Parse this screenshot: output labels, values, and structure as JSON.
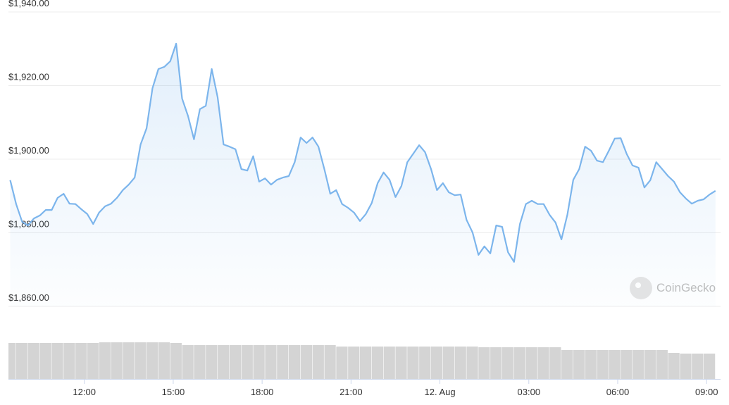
{
  "chart_data": [
    {
      "type": "line",
      "color": "#7cb5ec",
      "watermark": "CoinGecko",
      "x": [
        9.5,
        9.7,
        9.9,
        10.1,
        10.3,
        10.5,
        10.7,
        10.9,
        11.1,
        11.3,
        11.5,
        11.7,
        11.9,
        12.1,
        12.3,
        12.5,
        12.7,
        12.9,
        13.1,
        13.3,
        13.5,
        13.7,
        13.9,
        14.1,
        14.3,
        14.5,
        14.7,
        14.9,
        15.1,
        15.3,
        15.5,
        15.7,
        15.9,
        16.1,
        16.3,
        16.5,
        16.7,
        16.9,
        17.1,
        17.3,
        17.5,
        17.7,
        17.9,
        18.1,
        18.3,
        18.5,
        18.7,
        18.9,
        19.1,
        19.3,
        19.5,
        19.7,
        19.9,
        20.1,
        20.3,
        20.5,
        20.7,
        20.9,
        21.1,
        21.3,
        21.5,
        21.7,
        21.9,
        22.1,
        22.3,
        22.5,
        22.7,
        22.9,
        23.1,
        23.3,
        23.5,
        23.7,
        23.9,
        24.1,
        24.3,
        24.5,
        24.7,
        24.9,
        25.1,
        25.3,
        25.5,
        25.7,
        25.9,
        26.1,
        26.3,
        26.5,
        26.7,
        26.9,
        27.1,
        27.3,
        27.5,
        27.7,
        27.9,
        28.1,
        28.3,
        28.5,
        28.7,
        28.9,
        29.1,
        29.3,
        29.5,
        29.7,
        29.9,
        30.1,
        30.3,
        30.5,
        30.7,
        30.9,
        31.1,
        31.3,
        31.5,
        31.7,
        31.9,
        32.1,
        32.3,
        32.5,
        32.7,
        32.9,
        33.1,
        33.3
      ],
      "values": [
        1894.3,
        1887.8,
        1883.0,
        1882.0,
        1883.9,
        1884.7,
        1886.2,
        1886.2,
        1889.5,
        1890.6,
        1887.9,
        1887.8,
        1886.4,
        1885.1,
        1882.4,
        1885.5,
        1887.2,
        1887.9,
        1889.5,
        1891.6,
        1893.1,
        1895.0,
        1904.0,
        1908.4,
        1919.3,
        1924.5,
        1925.1,
        1926.6,
        1931.4,
        1916.5,
        1911.7,
        1905.4,
        1913.6,
        1914.5,
        1924.5,
        1916.8,
        1904.0,
        1903.4,
        1902.7,
        1897.3,
        1896.9,
        1900.8,
        1893.9,
        1894.8,
        1893.1,
        1894.4,
        1895.0,
        1895.4,
        1899.2,
        1905.9,
        1904.4,
        1905.9,
        1903.4,
        1897.3,
        1890.6,
        1891.6,
        1887.8,
        1886.8,
        1885.5,
        1883.2,
        1885.1,
        1888.1,
        1893.5,
        1896.4,
        1894.4,
        1889.7,
        1892.7,
        1899.2,
        1901.5,
        1903.8,
        1901.9,
        1897.3,
        1891.6,
        1893.5,
        1891.0,
        1890.2,
        1890.4,
        1883.5,
        1880.1,
        1874.0,
        1876.3,
        1874.4,
        1882.0,
        1881.6,
        1874.7,
        1872.1,
        1882.4,
        1887.8,
        1888.7,
        1887.8,
        1887.8,
        1884.9,
        1882.8,
        1878.2,
        1884.9,
        1894.4,
        1897.3,
        1903.4,
        1902.3,
        1899.6,
        1899.2,
        1902.3,
        1905.6,
        1905.7,
        1901.5,
        1898.3,
        1897.7,
        1892.3,
        1894.3,
        1899.2,
        1897.3,
        1895.4,
        1893.9,
        1891.0,
        1889.3,
        1887.9,
        1888.7,
        1889.1,
        1890.4,
        1891.4
      ],
      "xlim": [
        9.44,
        33.47
      ],
      "xticks": [
        {
          "value": 12,
          "label": "12:00"
        },
        {
          "value": 15,
          "label": "15:00"
        },
        {
          "value": 18,
          "label": "18:00"
        },
        {
          "value": 21,
          "label": "21:00"
        },
        {
          "value": 24,
          "label": "12. Aug"
        },
        {
          "value": 27,
          "label": "03:00"
        },
        {
          "value": 30,
          "label": "06:00"
        },
        {
          "value": 33,
          "label": "09:00"
        }
      ],
      "ylim": [
        1860,
        1940
      ],
      "yticks": [
        {
          "value": 1860,
          "label": "$1,860.00"
        },
        {
          "value": 1880,
          "label": "$1,880.00"
        },
        {
          "value": 1900,
          "label": "$1,900.00"
        },
        {
          "value": 1920,
          "label": "$1,920.00"
        },
        {
          "value": 1940,
          "label": "$1,940.00"
        }
      ],
      "grid": true
    },
    {
      "type": "bar",
      "color": "#d4d4d4",
      "x": [
        9.5,
        9.9,
        10.3,
        10.7,
        11.1,
        11.5,
        11.9,
        12.3,
        12.7,
        13.1,
        13.5,
        13.9,
        14.3,
        14.7,
        15.1,
        15.5,
        15.9,
        16.3,
        16.7,
        17.1,
        17.5,
        17.9,
        18.3,
        18.7,
        19.1,
        19.5,
        19.9,
        20.3,
        20.7,
        21.1,
        21.5,
        21.9,
        22.3,
        22.7,
        23.1,
        23.5,
        23.9,
        24.3,
        24.7,
        25.1,
        25.5,
        25.9,
        26.3,
        26.7,
        27.1,
        27.5,
        27.9,
        28.3,
        28.7,
        29.1,
        29.5,
        29.9,
        30.3,
        30.7,
        31.1,
        31.5,
        31.9,
        32.3,
        32.7,
        33.1
      ],
      "values": [
        51,
        51,
        51,
        51,
        51,
        51,
        51,
        51,
        52,
        52,
        52,
        52,
        52,
        52,
        51,
        48,
        48,
        48,
        48,
        48,
        48,
        48,
        48,
        48,
        48,
        48,
        48,
        48,
        46,
        46,
        46,
        46,
        46,
        46,
        46,
        46,
        46,
        46,
        46,
        46,
        45,
        45,
        45,
        45,
        45,
        45,
        45,
        41,
        41,
        41,
        41,
        41,
        41,
        41,
        41,
        41,
        37,
        36,
        36,
        36
      ],
      "xlim": [
        9.44,
        33.47
      ],
      "ylim": [
        0,
        55
      ]
    }
  ]
}
